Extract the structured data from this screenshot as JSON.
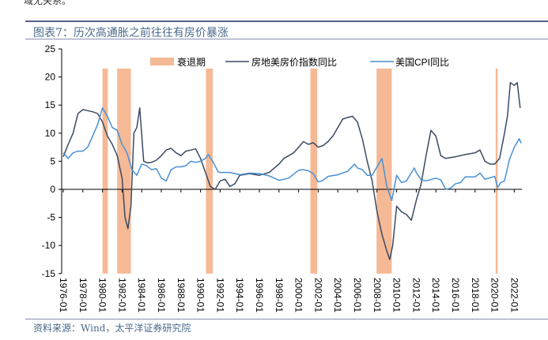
{
  "header": {
    "clipped_text": "域无关系。",
    "title": "图表7：历次高通胀之前往往有房价暴涨"
  },
  "footer": {
    "source": "资料来源：Wind，太平洋证券研究院"
  },
  "chart_data": {
    "type": "line",
    "title": "图表7：历次高通胀之前往往有房价暴涨",
    "ylabel": "",
    "xlabel": "",
    "ylim": [
      -15,
      25
    ],
    "yticks": [
      -15,
      -10,
      -5,
      0,
      5,
      10,
      15,
      20,
      25
    ],
    "xlim": [
      1976.0,
      2022.7
    ],
    "xtick_labels": [
      "1976-01",
      "1978-01",
      "1980-01",
      "1982-01",
      "1984-01",
      "1986-01",
      "1988-01",
      "1990-01",
      "1992-01",
      "1994-01",
      "1996-01",
      "1998-01",
      "2000-01",
      "2002-01",
      "2004-01",
      "2006-01",
      "2008-01",
      "2010-01",
      "2012-01",
      "2014-01",
      "2016-01",
      "2018-01",
      "2020-01",
      "2022-01"
    ],
    "legend": {
      "placement": "top-center",
      "entries": [
        "衰退期",
        "房地美房价指数同比",
        "美国CPI同比"
      ]
    },
    "colors": {
      "recession": "#f5b995",
      "house": "#3b4a63",
      "cpi": "#4a90d4"
    },
    "recessions": [
      [
        1980.0,
        1980.55
      ],
      [
        1981.5,
        1982.9
      ],
      [
        1990.55,
        1991.25
      ],
      [
        2001.2,
        2001.9
      ],
      [
        2007.95,
        2009.5
      ],
      [
        2020.1,
        2020.3
      ]
    ],
    "series": [
      {
        "name": "房地美房价指数同比",
        "x": [
          1976,
          1976.5,
          1977,
          1977.5,
          1978,
          1978.5,
          1979,
          1979.5,
          1980,
          1980.5,
          1981,
          1981.5,
          1982,
          1982.3,
          1982.6,
          1982.9,
          1983.2,
          1983.5,
          1983.8,
          1984.2,
          1984.6,
          1985,
          1985.5,
          1986,
          1986.5,
          1987,
          1987.5,
          1988,
          1988.5,
          1989,
          1989.5,
          1990,
          1990.5,
          1991,
          1991.5,
          1992,
          1992.5,
          1993,
          1993.5,
          1994,
          1995,
          1996,
          1997,
          1998,
          1998.5,
          1999,
          1999.5,
          2000,
          2000.5,
          2001,
          2001.5,
          2002,
          2002.5,
          2003,
          2003.5,
          2004,
          2004.5,
          2005,
          2005.5,
          2006,
          2006.5,
          2007,
          2007.5,
          2008,
          2008.5,
          2009,
          2009.3,
          2009.6,
          2010,
          2010.5,
          2011,
          2011.5,
          2012,
          2012.5,
          2013,
          2013.5,
          2014,
          2014.5,
          2015,
          2016,
          2017,
          2018,
          2018.5,
          2019,
          2019.5,
          2020,
          2020.5,
          2021,
          2021.3,
          2021.6,
          2022,
          2022.3,
          2022.6
        ],
        "values": [
          5.8,
          8,
          10,
          13.5,
          14.2,
          14,
          13.8,
          13.5,
          12,
          9.5,
          8,
          6,
          2,
          -5,
          -7,
          -3,
          10,
          11,
          14.5,
          5,
          4.7,
          4.8,
          5.2,
          6,
          7,
          7.3,
          6.5,
          6,
          6.8,
          7,
          7.2,
          5.5,
          3,
          0.5,
          0,
          1.5,
          1.8,
          0.5,
          1,
          2.5,
          2.8,
          2.5,
          3,
          4.5,
          5.5,
          6,
          6.5,
          7.5,
          8.5,
          8,
          8.3,
          7.5,
          7.8,
          8.5,
          9.5,
          11,
          12.5,
          12.8,
          13,
          12,
          9,
          5,
          1.5,
          -4,
          -8,
          -11,
          -12.5,
          -10,
          -3,
          -4,
          -4.5,
          -5.5,
          -2,
          1,
          6,
          10.5,
          9.5,
          6,
          5.5,
          5.8,
          6.2,
          6.5,
          7,
          5,
          4.5,
          4.5,
          5.5,
          10,
          13,
          19,
          18.5,
          19,
          14.5
        ]
      },
      {
        "name": "美国CPI同比",
        "x": [
          1976,
          1976.5,
          1977,
          1977.5,
          1978,
          1978.5,
          1979,
          1979.5,
          1980,
          1980.5,
          1981,
          1981.5,
          1982,
          1982.5,
          1983,
          1983.5,
          1984,
          1984.5,
          1985,
          1985.5,
          1986,
          1986.5,
          1987,
          1987.5,
          1988,
          1988.5,
          1989,
          1989.5,
          1990,
          1990.5,
          1990.8,
          1991.3,
          1991.8,
          1992,
          1993,
          1994,
          1995,
          1996,
          1997,
          1998,
          1999,
          2000,
          2000.5,
          2001,
          2001.5,
          2002,
          2002.5,
          2003,
          2004,
          2005,
          2005.7,
          2006,
          2006.5,
          2007,
          2007.5,
          2008,
          2008.5,
          2009,
          2009.5,
          2010,
          2010.5,
          2011,
          2011.8,
          2012,
          2012.5,
          2013,
          2014,
          2014.5,
          2015,
          2015.5,
          2016,
          2016.5,
          2017,
          2018,
          2018.5,
          2019,
          2020,
          2020.3,
          2020.6,
          2021,
          2021.5,
          2022,
          2022.5,
          2022.7
        ],
        "values": [
          6.5,
          5.5,
          6.5,
          6.8,
          6.8,
          7.5,
          9.5,
          11.5,
          14.5,
          13,
          11,
          10.5,
          8,
          6.5,
          3.5,
          2.5,
          4.5,
          4.2,
          3.5,
          3.7,
          2,
          1.5,
          3.5,
          4,
          4,
          4.2,
          5,
          4.8,
          5,
          5.5,
          6.2,
          4.8,
          3.1,
          3,
          3,
          2.6,
          2.9,
          2.8,
          2.4,
          1.6,
          2,
          3.4,
          3.5,
          3.3,
          2.8,
          1.3,
          1.6,
          2.3,
          2.6,
          3.2,
          4.5,
          3.8,
          3.5,
          2.5,
          2.5,
          4,
          5.5,
          0.5,
          -2,
          2.5,
          1.2,
          1.5,
          3.8,
          3,
          1.7,
          1.5,
          2,
          1.7,
          0,
          0.2,
          1,
          1.2,
          2.2,
          2.2,
          2.9,
          1.8,
          2.3,
          0.3,
          1.2,
          1.5,
          5.3,
          7.5,
          9,
          8.2
        ]
      }
    ]
  }
}
